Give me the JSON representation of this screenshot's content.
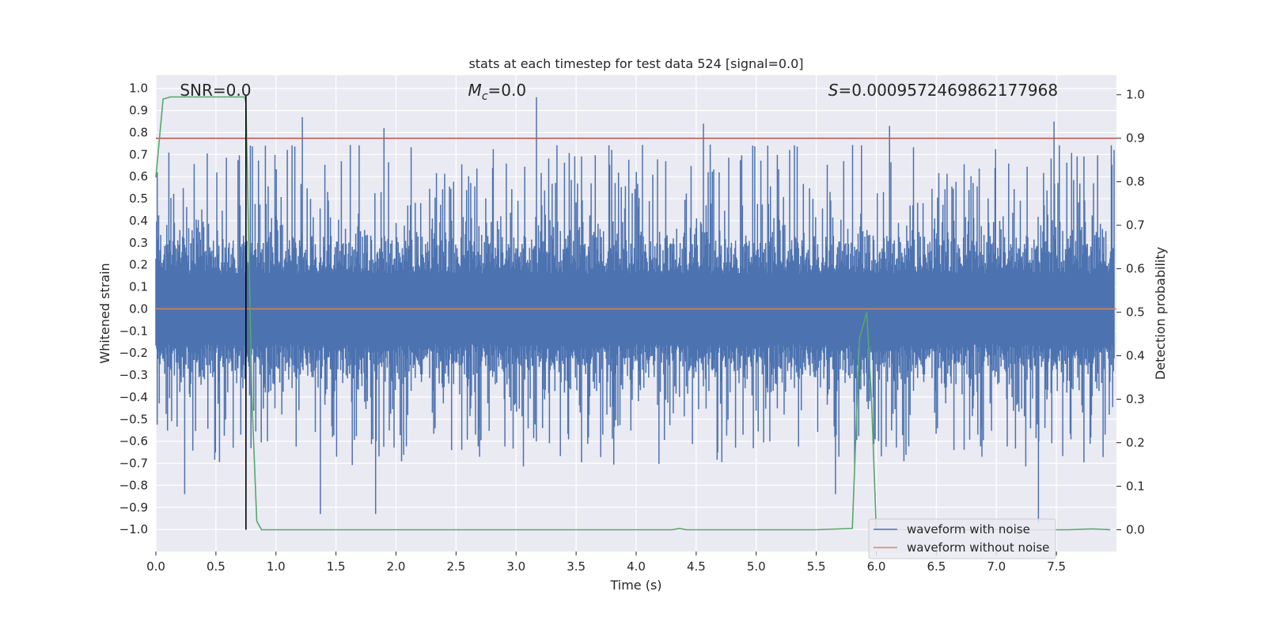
{
  "chart_data": {
    "type": "line",
    "title": "stats at each timestep for test data 524 [signal=0.0]",
    "xlabel": "Time (s)",
    "ylabel_left": "Whitened strain",
    "ylabel_right": "Detection probability",
    "xlim": [
      0.0,
      8.0
    ],
    "ylim_left": [
      -1.1,
      1.06
    ],
    "ylim_right": [
      -0.05,
      1.045
    ],
    "xticks": [
      0.0,
      0.5,
      1.0,
      1.5,
      2.0,
      2.5,
      3.0,
      3.5,
      4.0,
      4.5,
      5.0,
      5.5,
      6.0,
      6.5,
      7.0,
      7.5
    ],
    "yticks_left": [
      -1.0,
      -0.9,
      -0.8,
      -0.7,
      -0.6,
      -0.5,
      -0.4,
      -0.3,
      -0.2,
      -0.1,
      0.0,
      0.1,
      0.2,
      0.3,
      0.4,
      0.5,
      0.6,
      0.7,
      0.8,
      0.9,
      1.0
    ],
    "yticks_right": [
      0.0,
      0.1,
      0.2,
      0.3,
      0.4,
      0.5,
      0.6,
      0.7,
      0.8,
      0.9,
      1.0
    ],
    "xtick_labels": [
      "0.0",
      "0.5",
      "1.0",
      "1.5",
      "2.0",
      "2.5",
      "3.0",
      "3.5",
      "4.0",
      "4.5",
      "5.0",
      "5.5",
      "6.0",
      "6.5",
      "7.0",
      "7.5"
    ],
    "ytick_labels_left": [
      "−1.0",
      "−0.9",
      "−0.8",
      "−0.7",
      "−0.6",
      "−0.5",
      "−0.4",
      "−0.3",
      "−0.2",
      "−0.1",
      "0.0",
      "0.1",
      "0.2",
      "0.3",
      "0.4",
      "0.5",
      "0.6",
      "0.7",
      "0.8",
      "0.9",
      "1.0"
    ],
    "ytick_labels_right": [
      "0.0",
      "0.1",
      "0.2",
      "0.3",
      "0.4",
      "0.5",
      "0.6",
      "0.7",
      "0.8",
      "0.9",
      "1.0"
    ],
    "grid": true,
    "annotations": {
      "snr": "SNR=0.0",
      "mc_symbol": "M",
      "mc_sub": "c",
      "mc_value": "=0.0",
      "s_symbol": "S",
      "s_value": "=0.0009572469862177968"
    },
    "noise_series": {
      "name": "waveform with noise",
      "color": "#4c72b0",
      "typical_envelope": [
        -0.4,
        0.45
      ],
      "notable_peaks": [
        {
          "x": 3.17,
          "y": 0.96
        },
        {
          "x": 7.48,
          "y": 0.85
        },
        {
          "x": 1.22,
          "y": 0.87
        },
        {
          "x": 4.56,
          "y": 0.84
        },
        {
          "x": 6.11,
          "y": 0.83
        },
        {
          "x": 1.9,
          "y": 0.82
        }
      ],
      "notable_troughs": [
        {
          "x": 7.35,
          "y": -0.97
        },
        {
          "x": 1.37,
          "y": -0.93
        },
        {
          "x": 1.83,
          "y": -0.93
        },
        {
          "x": 0.24,
          "y": -0.84
        },
        {
          "x": 5.66,
          "y": -0.84
        }
      ]
    },
    "clean_series": {
      "name": "waveform without noise",
      "color": "#dd8452",
      "constant_value": 0.0
    },
    "threshold": {
      "axis": "right",
      "value": 0.9,
      "color": "#c44e52"
    },
    "detection_probability": {
      "axis": "right",
      "color": "#55a868",
      "x": [
        0.0,
        0.06,
        0.12,
        0.2,
        0.4,
        0.6,
        0.74,
        0.75,
        0.8,
        0.84,
        0.88,
        1.5,
        2.5,
        3.5,
        4.3,
        4.36,
        4.42,
        5.0,
        5.5,
        5.8,
        5.86,
        5.92,
        5.96,
        6.0,
        6.05,
        6.2,
        7.0,
        7.6,
        7.8,
        7.95
      ],
      "y": [
        0.81,
        0.99,
        0.995,
        0.995,
        0.995,
        0.995,
        0.995,
        0.98,
        0.3,
        0.02,
        0.0,
        0.0,
        0.0,
        0.0,
        0.0,
        0.003,
        0.0,
        0.0,
        0.0,
        0.003,
        0.44,
        0.5,
        0.3,
        0.0,
        0.0,
        0.0,
        0.0,
        0.0,
        0.002,
        0.0
      ]
    },
    "vertical_marker": {
      "x": 0.75,
      "color": "#000000"
    },
    "legend": {
      "location": "lower-right",
      "entries": [
        {
          "label": "waveform with noise",
          "color": "#4c72b0"
        },
        {
          "label": "waveform without noise",
          "color": "#dd8452"
        }
      ]
    }
  }
}
